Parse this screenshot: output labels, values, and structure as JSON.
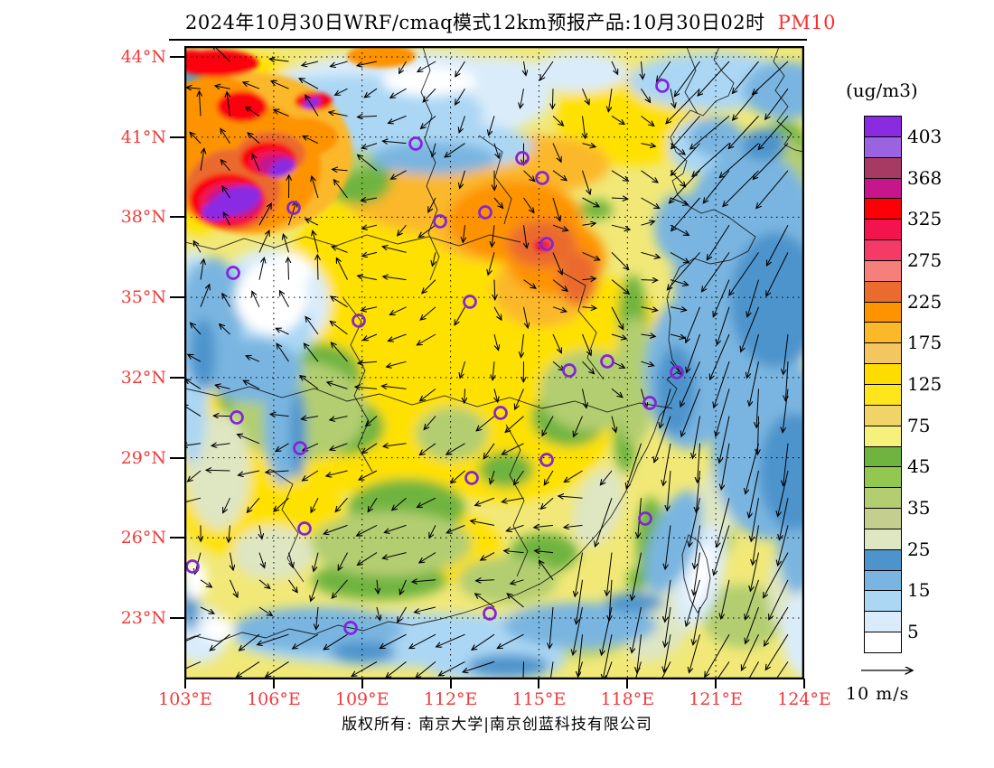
{
  "title": {
    "main": "2024年10月30日WRF/cmaq模式12km预报产品:10月30日02时",
    "pollutant": "PM10"
  },
  "colorbar": {
    "unit": "(ug/m3)",
    "tick_labels": [
      "403",
      "368",
      "325",
      "275",
      "225",
      "175",
      "125",
      "75",
      "45",
      "35",
      "25",
      "15",
      "5"
    ],
    "colors_top_to_bottom": [
      "#8A2BE2",
      "#9A63E0",
      "#A73A62",
      "#C7158C",
      "#FB0007",
      "#F3134F",
      "#F43A67",
      "#F57F7B",
      "#EA6B2E",
      "#FE9300",
      "#FBB829",
      "#F3C65F",
      "#FFDC00",
      "#FFE51C",
      "#F0D468",
      "#F6F07C",
      "#6FB43F",
      "#92C850",
      "#B2CE71",
      "#C3CE8F",
      "#DEE6C2",
      "#4E94CC",
      "#79B5E0",
      "#ABD7F4",
      "#DAECFA",
      "#FFFFFF"
    ]
  },
  "axes": {
    "lat_labels": [
      "44°N",
      "41°N",
      "38°N",
      "35°N",
      "32°N",
      "29°N",
      "26°N",
      "23°N"
    ],
    "lon_labels": [
      "103°E",
      "106°E",
      "109°E",
      "112°E",
      "115°E",
      "118°E",
      "121°E",
      "124°E"
    ],
    "label_color": "#F23B3B"
  },
  "wind_reference": {
    "label": "10 m/s"
  },
  "footer": {
    "copyright": "版权所有: 南京大学|南京创蓝科技有限公司"
  },
  "map": {
    "marker_color": "#8324D8",
    "city_markers": [
      [
        733,
        95
      ],
      [
        460,
        159
      ],
      [
        578,
        175
      ],
      [
        600,
        197
      ],
      [
        325,
        230
      ],
      [
        487,
        245
      ],
      [
        537,
        235
      ],
      [
        605,
        270
      ],
      [
        258,
        302
      ],
      [
        520,
        334
      ],
      [
        397,
        355
      ],
      [
        630,
        410
      ],
      [
        672,
        400
      ],
      [
        749,
        412
      ],
      [
        719,
        446
      ],
      [
        262,
        462
      ],
      [
        332,
        496
      ],
      [
        554,
        457
      ],
      [
        522,
        529
      ],
      [
        605,
        509
      ],
      [
        337,
        585
      ],
      [
        714,
        574
      ],
      [
        213,
        627
      ],
      [
        388,
        695
      ],
      [
        542,
        679
      ]
    ]
  },
  "chart_data": {
    "type": "heatmap",
    "subtype": "filled-contour forecast map with wind vector overlay",
    "title": "2024年10月30日WRF/cmaq模式12km预报产品:10月30日02时 PM10",
    "pollutant": "PM10",
    "unit": "(ug/m3)",
    "colorbar_tick_values": [
      403,
      368,
      325,
      275,
      225,
      175,
      125,
      75,
      45,
      35,
      25,
      15,
      5
    ],
    "colorbar_colors_top_to_bottom": [
      "#8A2BE2",
      "#9A63E0",
      "#A73A62",
      "#C7158C",
      "#FB0007",
      "#F3134F",
      "#F43A67",
      "#F57F7B",
      "#EA6B2E",
      "#FE9300",
      "#FBB829",
      "#F3C65F",
      "#FFDC00",
      "#FFE51C",
      "#F0D468",
      "#F6F07C",
      "#6FB43F",
      "#92C850",
      "#B2CE71",
      "#C3CE8F",
      "#DEE6C2",
      "#4E94CC",
      "#79B5E0",
      "#ABD7F4",
      "#DAECFA",
      "#FFFFFF"
    ],
    "x_ticks_lon": [
      103,
      106,
      109,
      112,
      115,
      118,
      121,
      124
    ],
    "y_ticks_lat": [
      44,
      41,
      38,
      35,
      32,
      29,
      26,
      23
    ],
    "grid": "dotted lat/lon graticule every 3 degrees",
    "wind_reference": "10 m/s",
    "overlays": [
      "wind vectors",
      "purple city ring markers",
      "province boundaries and coastline"
    ],
    "notable_features": [
      "extreme PM10 maximum (>325 ug/m3, red/magenta/purple) over northwest corner near 104-107E, 38-41N",
      "orange band 175-250 ug/m3 over 112-116E, 36-39N",
      "broad yellow 75-150 ug/m3 over central China",
      "blue low concentrations (5-25 ug/m3) over the East China Sea with strong northeasterly winds",
      "green 35-60 ug/m3 patches over southern inland China"
    ]
  }
}
